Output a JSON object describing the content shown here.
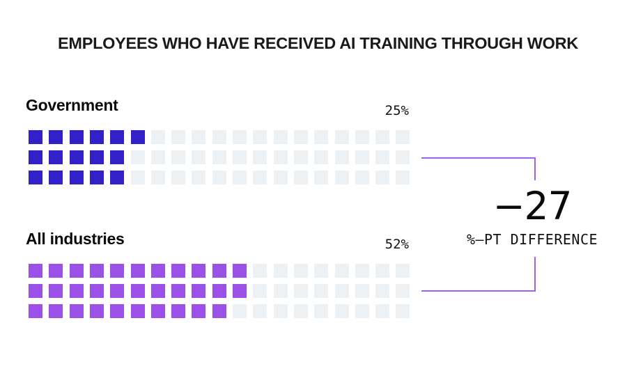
{
  "title": "EMPLOYEES WHO HAVE RECEIVED AI TRAINING THROUGH WORK",
  "groups": [
    {
      "label": "Government",
      "value_label": "25%",
      "filled_per_row": [
        6,
        5,
        5
      ],
      "color": "#3220c9"
    },
    {
      "label": "All industries",
      "value_label": "52%",
      "filled_per_row": [
        11,
        11,
        10
      ],
      "color": "#9b51e8"
    }
  ],
  "grid": {
    "rows": 3,
    "columns": 19,
    "empty_color": "#eef1f4"
  },
  "difference": {
    "value": "−27",
    "label": "%–PT DIFFERENCE",
    "bracket_color": "#a35ef0"
  },
  "chart_data": {
    "type": "waffle",
    "title": "EMPLOYEES WHO HAVE RECEIVED AI TRAINING THROUGH WORK",
    "categories": [
      "Government",
      "All industries"
    ],
    "values": [
      25,
      52
    ],
    "unit": "%",
    "series": [
      {
        "name": "Government",
        "value": 25,
        "color": "#3220c9"
      },
      {
        "name": "All industries",
        "value": 52,
        "color": "#9b51e8"
      }
    ],
    "annotation": {
      "value": -27,
      "label": "%-PT DIFFERENCE"
    },
    "grid_layout": {
      "rows": 3,
      "columns": 19
    }
  }
}
